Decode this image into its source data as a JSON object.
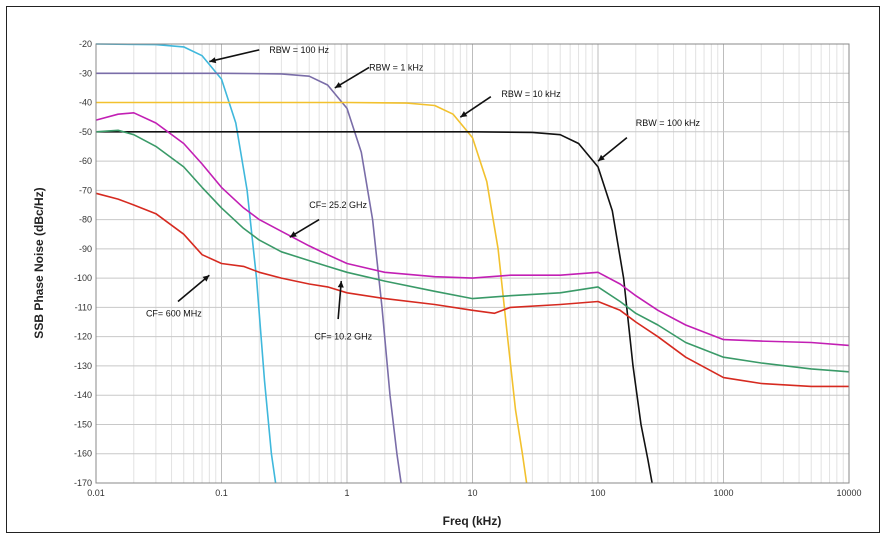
{
  "chart_data": {
    "type": "line",
    "xlabel": "Freq (kHz)",
    "ylabel": "SSB Phase Noise (dBc/Hz)",
    "x_scale": "log",
    "xlim": [
      0.01,
      10000
    ],
    "ylim": [
      -170,
      -20
    ],
    "grid": true,
    "x_ticks": [
      "0.01",
      "0.1",
      "1",
      "10",
      "100",
      "1000",
      "10000"
    ],
    "y_ticks": [
      "-20",
      "-30",
      "-40",
      "-50",
      "-60",
      "-70",
      "-80",
      "-90",
      "-100",
      "-110",
      "-120",
      "-130",
      "-140",
      "-150",
      "-160",
      "-170"
    ],
    "series": [
      {
        "name": "RBW = 100 Hz",
        "color": "#3fb8dc",
        "x": [
          0.01,
          0.03,
          0.05,
          0.07,
          0.1,
          0.13,
          0.16,
          0.19,
          0.22,
          0.25,
          0.27
        ],
        "y": [
          -20,
          -20.2,
          -21,
          -24,
          -32,
          -47,
          -70,
          -100,
          -135,
          -160,
          -170
        ]
      },
      {
        "name": "RBW = 1 kHz",
        "color": "#7a6da8",
        "x": [
          0.01,
          0.1,
          0.3,
          0.5,
          0.7,
          1.0,
          1.3,
          1.6,
          1.9,
          2.2,
          2.5,
          2.7
        ],
        "y": [
          -30,
          -30,
          -30.2,
          -31,
          -34,
          -42,
          -57,
          -80,
          -110,
          -140,
          -160,
          -170
        ]
      },
      {
        "name": "RBW = 10 kHz",
        "color": "#f2c12e",
        "x": [
          0.01,
          0.1,
          1,
          3,
          5,
          7,
          10,
          13,
          16,
          19,
          22,
          25,
          27
        ],
        "y": [
          -40,
          -40,
          -40,
          -40.2,
          -41,
          -44,
          -52,
          -67,
          -90,
          -120,
          -145,
          -160,
          -170
        ]
      },
      {
        "name": "RBW = 100 kHz",
        "color": "#111111",
        "x": [
          0.01,
          0.1,
          1,
          10,
          30,
          50,
          70,
          100,
          130,
          160,
          190,
          220,
          250,
          270
        ],
        "y": [
          -50,
          -50,
          -50,
          -50,
          -50.2,
          -51,
          -54,
          -62,
          -77,
          -100,
          -130,
          -150,
          -162,
          -170
        ]
      },
      {
        "name": "CF= 25.2 GHz",
        "color": "#c21fb4",
        "x": [
          0.01,
          0.015,
          0.02,
          0.03,
          0.05,
          0.07,
          0.1,
          0.15,
          0.2,
          0.3,
          0.5,
          0.7,
          1,
          2,
          5,
          10,
          20,
          50,
          100,
          150,
          200,
          300,
          500,
          1000,
          2000,
          5000,
          10000
        ],
        "y": [
          -46,
          -44,
          -43.5,
          -47,
          -54,
          -61,
          -69,
          -76,
          -80,
          -84,
          -89,
          -92,
          -95,
          -98,
          -99.5,
          -100,
          -99,
          -99,
          -98,
          -102,
          -106,
          -111,
          -116,
          -121,
          -121.5,
          -122,
          -123
        ]
      },
      {
        "name": "CF= 10.2 GHz",
        "color": "#3a9a68",
        "x": [
          0.01,
          0.015,
          0.02,
          0.03,
          0.05,
          0.07,
          0.1,
          0.15,
          0.2,
          0.3,
          0.5,
          0.7,
          1,
          2,
          5,
          10,
          20,
          50,
          100,
          150,
          200,
          300,
          500,
          1000,
          2000,
          5000,
          10000
        ],
        "y": [
          -50,
          -49.5,
          -51,
          -55,
          -62,
          -69,
          -76,
          -83,
          -87,
          -91,
          -94,
          -96,
          -98,
          -101,
          -104.5,
          -107,
          -106,
          -105,
          -103,
          -108,
          -112,
          -116,
          -122,
          -127,
          -129,
          -131,
          -132
        ]
      },
      {
        "name": "CF= 600 MHz",
        "color": "#d62a20",
        "x": [
          0.01,
          0.015,
          0.02,
          0.03,
          0.05,
          0.07,
          0.1,
          0.15,
          0.2,
          0.3,
          0.5,
          0.7,
          1,
          2,
          5,
          10,
          15,
          20,
          50,
          100,
          150,
          200,
          300,
          500,
          1000,
          2000,
          5000,
          10000
        ],
        "y": [
          -71,
          -73,
          -75,
          -78,
          -85,
          -92,
          -95,
          -96,
          -98,
          -100,
          -102,
          -103,
          -105,
          -107,
          -109,
          -111,
          -112,
          -110,
          -109,
          -108,
          -111,
          -115,
          -120,
          -127,
          -134,
          -136,
          -137,
          -137
        ]
      }
    ],
    "annotations": [
      {
        "text": "RBW = 100 Hz",
        "label_at": [
          0.24,
          -22
        ],
        "arrow_from": [
          0.2,
          -22
        ],
        "arrow_to": [
          0.08,
          -26
        ]
      },
      {
        "text": "RBW = 1 kHz",
        "label_at": [
          1.5,
          -28
        ],
        "arrow_from": [
          1.5,
          -28
        ],
        "arrow_to": [
          0.8,
          -35
        ]
      },
      {
        "text": "RBW = 10 kHz",
        "label_at": [
          17,
          -37
        ],
        "arrow_from": [
          14,
          -38
        ],
        "arrow_to": [
          8,
          -45
        ]
      },
      {
        "text": "RBW = 100 kHz",
        "label_at": [
          200,
          -47
        ],
        "arrow_from": [
          170,
          -52
        ],
        "arrow_to": [
          100,
          -60
        ]
      },
      {
        "text": "CF= 25.2 GHz",
        "label_at": [
          0.5,
          -75
        ],
        "arrow_from": [
          0.6,
          -80
        ],
        "arrow_to": [
          0.35,
          -86
        ]
      },
      {
        "text": "CF= 10.2 GHz",
        "label_at": [
          0.55,
          -120
        ],
        "arrow_from": [
          0.85,
          -114
        ],
        "arrow_to": [
          0.9,
          -101
        ]
      },
      {
        "text": "CF= 600 MHz",
        "label_at": [
          0.025,
          -112
        ],
        "arrow_from": [
          0.045,
          -108
        ],
        "arrow_to": [
          0.08,
          -99
        ]
      }
    ]
  }
}
